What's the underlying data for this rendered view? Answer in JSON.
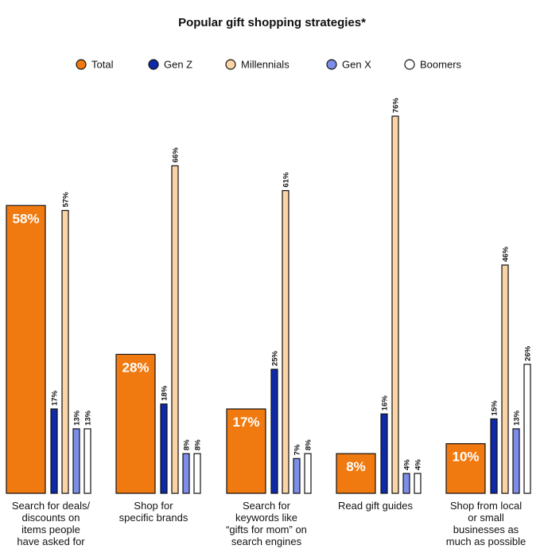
{
  "chart_data": {
    "type": "bar",
    "title": "Popular gift shopping strategies*",
    "categories": [
      [
        "Search for deals/",
        "discounts on",
        "items people",
        "have asked for"
      ],
      [
        "Shop for",
        "specific brands"
      ],
      [
        "Search for",
        "keywords like",
        "“gifts for mom” on",
        "search engines"
      ],
      [
        "Read gift guides"
      ],
      [
        "Shop from local",
        "or small",
        "businesses as",
        "much as possible"
      ]
    ],
    "series": [
      {
        "name": "Total",
        "values": [
          58,
          28,
          17,
          8,
          10
        ],
        "labels": [
          "58%",
          "28%",
          "17%",
          "8%",
          "10%"
        ]
      },
      {
        "name": "Gen Z",
        "values": [
          17,
          18,
          25,
          16,
          15
        ],
        "labels": [
          "17%",
          "18%",
          "25%",
          "16%",
          "15%"
        ]
      },
      {
        "name": "Millennials",
        "values": [
          57,
          66,
          61,
          76,
          46
        ],
        "labels": [
          "57%",
          "66%",
          "61%",
          "76%",
          "46%"
        ]
      },
      {
        "name": "Gen X",
        "values": [
          13,
          8,
          7,
          4,
          13
        ],
        "labels": [
          "13%",
          "8%",
          "7%",
          "4%",
          "13%"
        ]
      },
      {
        "name": "Boomers",
        "values": [
          13,
          8,
          8,
          4,
          26
        ],
        "labels": [
          "13%",
          "8%",
          "8%",
          "4%",
          "26%"
        ]
      }
    ],
    "colors": [
      "#f07a10",
      "#0f2aa8",
      "#fbd4a6",
      "#7c8ee8",
      "#ffffff"
    ],
    "ylim": [
      0,
      80
    ],
    "grid": false,
    "legend_position": "top-center"
  }
}
